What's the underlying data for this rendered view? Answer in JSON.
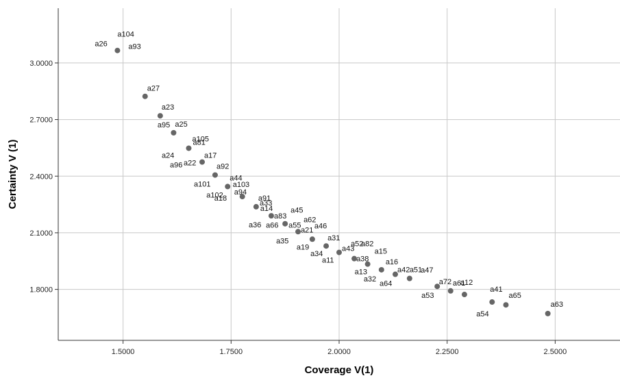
{
  "chart_data": {
    "type": "scatter",
    "title": "",
    "xlabel": "Coverage V(1)",
    "ylabel": "Certainty V (1)",
    "xlim": [
      1.35,
      2.65
    ],
    "ylim": [
      1.53,
      3.29
    ],
    "xticks": [
      1.5,
      1.75,
      2.0,
      2.25,
      2.5
    ],
    "xtick_labels": [
      "1.5000",
      "1.7500",
      "2.0000",
      "2.2500",
      "2.5000"
    ],
    "yticks": [
      1.8,
      2.1,
      2.4,
      2.7,
      3.0
    ],
    "ytick_labels": [
      "1.8000",
      "2.1000",
      "2.4000",
      "2.7000",
      "3.0000"
    ],
    "grid": true,
    "marker_color": "#666666",
    "points": [
      {
        "x": 1.487,
        "y": 3.066,
        "labels": [
          {
            "text": "a104"
          },
          {
            "text": "a26"
          },
          {
            "text": "a93"
          }
        ]
      },
      {
        "x": 1.551,
        "y": 2.823,
        "labels": [
          {
            "text": "a27"
          }
        ]
      },
      {
        "x": 1.586,
        "y": 2.72,
        "labels": [
          {
            "text": "a23"
          },
          {
            "text": "a95"
          }
        ]
      },
      {
        "x": 1.617,
        "y": 2.63,
        "labels": [
          {
            "text": "a25"
          }
        ]
      },
      {
        "x": 1.652,
        "y": 2.548,
        "labels": [
          {
            "text": "a105"
          },
          {
            "text": "a81"
          }
        ]
      },
      {
        "x": 1.683,
        "y": 2.475,
        "labels": [
          {
            "text": "a24"
          },
          {
            "text": "a96"
          },
          {
            "text": "a22"
          },
          {
            "text": "a17"
          }
        ]
      },
      {
        "x": 1.713,
        "y": 2.406,
        "labels": [
          {
            "text": "a92"
          },
          {
            "text": "a101"
          }
        ]
      },
      {
        "x": 1.742,
        "y": 2.345,
        "labels": [
          {
            "text": "a44"
          },
          {
            "text": "a102"
          }
        ]
      },
      {
        "x": 1.776,
        "y": 2.292,
        "labels": [
          {
            "text": "a103"
          },
          {
            "text": "a94"
          },
          {
            "text": "a18"
          }
        ]
      },
      {
        "x": 1.808,
        "y": 2.238,
        "labels": [
          {
            "text": "a91"
          },
          {
            "text": "a14"
          }
        ]
      },
      {
        "x": 1.843,
        "y": 2.19,
        "labels": [
          {
            "text": "a33"
          },
          {
            "text": "a36"
          },
          {
            "text": "a83"
          }
        ]
      },
      {
        "x": 1.875,
        "y": 2.148,
        "labels": [
          {
            "text": "a45"
          },
          {
            "text": "a66"
          },
          {
            "text": "a55"
          }
        ]
      },
      {
        "x": 1.905,
        "y": 2.106,
        "labels": [
          {
            "text": "a62"
          },
          {
            "text": "a35"
          },
          {
            "text": "a21"
          }
        ]
      },
      {
        "x": 1.938,
        "y": 2.066,
        "labels": [
          {
            "text": "a46"
          },
          {
            "text": "a19"
          }
        ]
      },
      {
        "x": 1.97,
        "y": 2.03,
        "labels": [
          {
            "text": "a31"
          },
          {
            "text": "a34"
          }
        ]
      },
      {
        "x": 2.0,
        "y": 1.996,
        "labels": [
          {
            "text": "a43"
          },
          {
            "text": "a11"
          }
        ]
      },
      {
        "x": 2.035,
        "y": 1.963,
        "labels": [
          {
            "text": "a82"
          },
          {
            "text": "a52"
          },
          {
            "text": "a38"
          }
        ]
      },
      {
        "x": 2.066,
        "y": 1.934,
        "labels": [
          {
            "text": "a15"
          },
          {
            "text": "a13"
          }
        ]
      },
      {
        "x": 2.098,
        "y": 1.904,
        "labels": [
          {
            "text": "a16"
          },
          {
            "text": "a32"
          }
        ]
      },
      {
        "x": 2.13,
        "y": 1.88,
        "labels": [
          {
            "text": "a42"
          },
          {
            "text": "a64"
          }
        ]
      },
      {
        "x": 2.163,
        "y": 1.858,
        "labels": [
          {
            "text": "a51"
          }
        ]
      },
      {
        "x": 2.227,
        "y": 1.816,
        "labels": [
          {
            "text": "a47"
          },
          {
            "text": "a53"
          }
        ]
      },
      {
        "x": 2.258,
        "y": 1.792,
        "labels": [
          {
            "text": "a72"
          }
        ]
      },
      {
        "x": 2.29,
        "y": 1.773,
        "labels": [
          {
            "text": "a61"
          },
          {
            "text": "a12"
          }
        ]
      },
      {
        "x": 2.354,
        "y": 1.733,
        "labels": [
          {
            "text": "a41"
          },
          {
            "text": "a54"
          }
        ]
      },
      {
        "x": 2.386,
        "y": 1.718,
        "labels": [
          {
            "text": "a65"
          }
        ]
      },
      {
        "x": 2.483,
        "y": 1.672,
        "labels": [
          {
            "text": "a63"
          }
        ]
      }
    ]
  }
}
